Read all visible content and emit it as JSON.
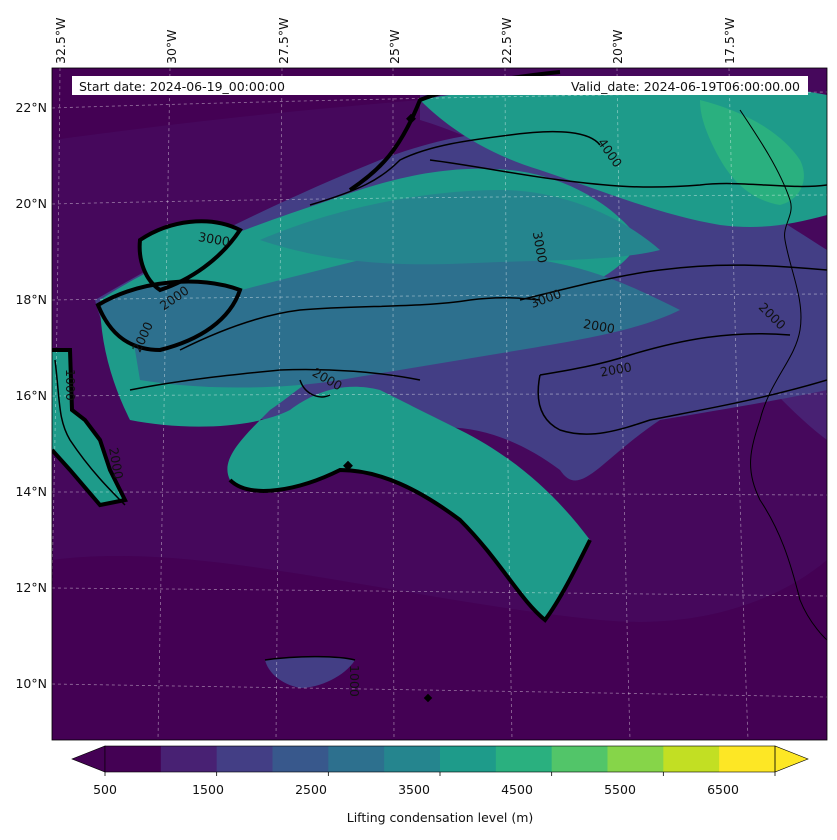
{
  "map": {
    "start_date_label": "Start date: 2024-06-19_00:00:00",
    "valid_date_label": "Valid_date: 2024-06-19T06:00:00.00",
    "lon_labels": [
      "32.5°W",
      "30°W",
      "27.5°W",
      "25°W",
      "22.5°W",
      "20°W",
      "17.5°W"
    ],
    "lat_labels": [
      "22°N",
      "20°N",
      "18°N",
      "16°N",
      "14°N",
      "12°N",
      "10°N"
    ],
    "contour_labels": [
      "4000",
      "3000",
      "3000",
      "3000",
      "2000",
      "2000",
      "2000",
      "2000",
      "2000",
      "1000",
      "2000",
      "2000",
      "1000"
    ]
  },
  "colorbar": {
    "label": "Lifting condensation level (m)",
    "tick_labels": [
      "500",
      "1500",
      "2500",
      "3500",
      "4500",
      "5500",
      "6500"
    ],
    "levels": [
      500,
      1000,
      1500,
      2000,
      2500,
      3000,
      3500,
      4000,
      4500,
      5000,
      5500,
      6000,
      6500,
      7000
    ],
    "colors": [
      "#440154",
      "#482173",
      "#433e85",
      "#38588c",
      "#2d708e",
      "#25858e",
      "#1e9b8a",
      "#2ab07f",
      "#52c569",
      "#86d549",
      "#c2df23",
      "#fde725"
    ],
    "under_color": "#440154",
    "over_color": "#fde725"
  }
}
